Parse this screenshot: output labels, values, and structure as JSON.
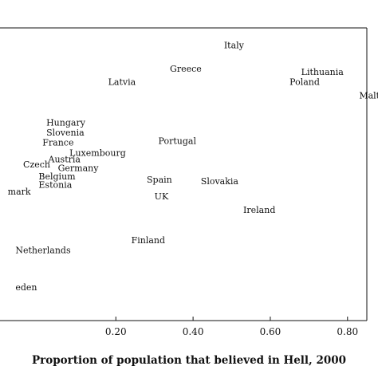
{
  "chart_data": {
    "type": "scatter",
    "title": "",
    "xlabel": "Proportion of population that believed in Hell, 2000",
    "ylabel": "",
    "xlim": [
      -0.1,
      0.85
    ],
    "ylim": [
      0.19,
      1.06
    ],
    "x_ticks": [
      {
        "value": 0.2,
        "label": "0.20"
      },
      {
        "value": 0.4,
        "label": "0.40"
      },
      {
        "value": 0.6,
        "label": "0.60"
      },
      {
        "value": 0.8,
        "label": "0.80"
      }
    ],
    "grid": false,
    "points": [
      {
        "label": "Italy",
        "x": 0.48,
        "y": 1.0
      },
      {
        "label": "Greece",
        "x": 0.34,
        "y": 0.93
      },
      {
        "label": "Lithuania",
        "x": 0.68,
        "y": 0.92
      },
      {
        "label": "Latvia",
        "x": 0.18,
        "y": 0.89
      },
      {
        "label": "Poland",
        "x": 0.65,
        "y": 0.89
      },
      {
        "label": "Malta",
        "x": 0.83,
        "y": 0.85
      },
      {
        "label": "Hungary",
        "x": 0.02,
        "y": 0.77
      },
      {
        "label": "Slovenia",
        "x": 0.02,
        "y": 0.74
      },
      {
        "label": "France",
        "x": 0.01,
        "y": 0.71
      },
      {
        "label": "Portugal",
        "x": 0.31,
        "y": 0.715
      },
      {
        "label": "Luxembourg",
        "x": 0.08,
        "y": 0.68
      },
      {
        "label": "Austria",
        "x": 0.025,
        "y": 0.66
      },
      {
        "label": "Czech",
        "x": -0.04,
        "y": 0.645
      },
      {
        "label": "Germany",
        "x": 0.05,
        "y": 0.635
      },
      {
        "label": "Belgium",
        "x": 0.0,
        "y": 0.61
      },
      {
        "label": "Spain",
        "x": 0.28,
        "y": 0.6
      },
      {
        "label": "Slovakia",
        "x": 0.42,
        "y": 0.595
      },
      {
        "label": "Estonia",
        "x": 0.0,
        "y": 0.585
      },
      {
        "label": "mark",
        "x": -0.08,
        "y": 0.565
      },
      {
        "label": "UK",
        "x": 0.3,
        "y": 0.55
      },
      {
        "label": "Ireland",
        "x": 0.53,
        "y": 0.51
      },
      {
        "label": "Finland",
        "x": 0.24,
        "y": 0.42
      },
      {
        "label": "Netherlands",
        "x": -0.06,
        "y": 0.39
      },
      {
        "label": "eden",
        "x": -0.06,
        "y": 0.28
      }
    ]
  }
}
